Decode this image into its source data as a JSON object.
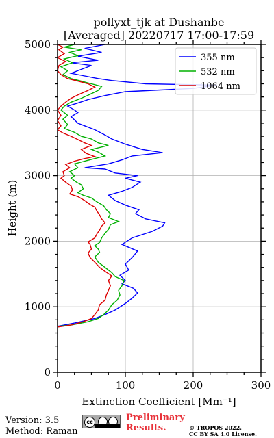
{
  "chart_data": {
    "type": "line",
    "title": "pollyxt_tjk at Dushanbe",
    "subtitle": "[Averaged] 20220717 17:00-17:59",
    "xlabel": "Extinction Coefficient [Mm⁻¹]",
    "ylabel": "Height (m)",
    "xlim": [
      0,
      300
    ],
    "ylim": [
      0,
      5000
    ],
    "xticks": [
      0,
      100,
      200,
      300
    ],
    "yticks": [
      0,
      1000,
      2000,
      3000,
      4000,
      5000
    ],
    "grid": true,
    "legend_position": "top-right",
    "series": [
      {
        "name": "355 nm",
        "color": "#0000ff",
        "points": [
          [
            0,
            700
          ],
          [
            25,
            750
          ],
          [
            55,
            820
          ],
          [
            70,
            880
          ],
          [
            85,
            950
          ],
          [
            100,
            1050
          ],
          [
            110,
            1130
          ],
          [
            118,
            1210
          ],
          [
            112,
            1280
          ],
          [
            95,
            1350
          ],
          [
            100,
            1400
          ],
          [
            92,
            1480
          ],
          [
            105,
            1560
          ],
          [
            100,
            1650
          ],
          [
            110,
            1750
          ],
          [
            118,
            1850
          ],
          [
            95,
            1950
          ],
          [
            110,
            2050
          ],
          [
            140,
            2150
          ],
          [
            155,
            2230
          ],
          [
            158,
            2280
          ],
          [
            130,
            2340
          ],
          [
            115,
            2420
          ],
          [
            120,
            2480
          ],
          [
            100,
            2550
          ],
          [
            85,
            2620
          ],
          [
            75,
            2700
          ],
          [
            95,
            2760
          ],
          [
            110,
            2820
          ],
          [
            122,
            2900
          ],
          [
            100,
            2960
          ],
          [
            118,
            3000
          ],
          [
            85,
            3040
          ],
          [
            70,
            3100
          ],
          [
            40,
            3120
          ],
          [
            75,
            3180
          ],
          [
            95,
            3240
          ],
          [
            110,
            3300
          ],
          [
            155,
            3350
          ],
          [
            125,
            3400
          ],
          [
            100,
            3480
          ],
          [
            80,
            3560
          ],
          [
            70,
            3620
          ],
          [
            55,
            3700
          ],
          [
            40,
            3760
          ],
          [
            30,
            3800
          ],
          [
            20,
            3900
          ],
          [
            30,
            3960
          ],
          [
            25,
            4000
          ],
          [
            15,
            4060
          ],
          [
            28,
            4100
          ],
          [
            45,
            4160
          ],
          [
            70,
            4220
          ],
          [
            100,
            4280
          ],
          [
            200,
            4330
          ],
          [
            235,
            4380
          ],
          [
            130,
            4400
          ],
          [
            80,
            4450
          ],
          [
            60,
            4480
          ],
          [
            40,
            4520
          ],
          [
            20,
            4560
          ],
          [
            35,
            4620
          ],
          [
            50,
            4680
          ],
          [
            20,
            4720
          ],
          [
            60,
            4760
          ],
          [
            30,
            4820
          ],
          [
            65,
            4880
          ],
          [
            40,
            4940
          ],
          [
            70,
            5000
          ]
        ]
      },
      {
        "name": "532 nm",
        "color": "#00b000",
        "points": [
          [
            0,
            700
          ],
          [
            20,
            720
          ],
          [
            45,
            770
          ],
          [
            60,
            820
          ],
          [
            68,
            880
          ],
          [
            75,
            950
          ],
          [
            80,
            1030
          ],
          [
            88,
            1100
          ],
          [
            92,
            1180
          ],
          [
            90,
            1250
          ],
          [
            95,
            1320
          ],
          [
            98,
            1400
          ],
          [
            85,
            1460
          ],
          [
            80,
            1520
          ],
          [
            70,
            1600
          ],
          [
            60,
            1680
          ],
          [
            55,
            1760
          ],
          [
            62,
            1830
          ],
          [
            60,
            1880
          ],
          [
            55,
            1930
          ],
          [
            62,
            1980
          ],
          [
            65,
            2050
          ],
          [
            70,
            2120
          ],
          [
            75,
            2180
          ],
          [
            78,
            2250
          ],
          [
            90,
            2300
          ],
          [
            75,
            2360
          ],
          [
            78,
            2420
          ],
          [
            72,
            2480
          ],
          [
            68,
            2540
          ],
          [
            58,
            2600
          ],
          [
            50,
            2660
          ],
          [
            38,
            2700
          ],
          [
            30,
            2740
          ],
          [
            38,
            2800
          ],
          [
            35,
            2860
          ],
          [
            28,
            2900
          ],
          [
            20,
            2960
          ],
          [
            25,
            3000
          ],
          [
            18,
            3060
          ],
          [
            30,
            3120
          ],
          [
            25,
            3180
          ],
          [
            40,
            3220
          ],
          [
            55,
            3260
          ],
          [
            70,
            3300
          ],
          [
            60,
            3360
          ],
          [
            50,
            3400
          ],
          [
            75,
            3460
          ],
          [
            60,
            3500
          ],
          [
            50,
            3560
          ],
          [
            35,
            3600
          ],
          [
            25,
            3660
          ],
          [
            10,
            3720
          ],
          [
            15,
            3780
          ],
          [
            8,
            3860
          ],
          [
            15,
            3920
          ],
          [
            5,
            4000
          ],
          [
            10,
            4060
          ],
          [
            20,
            4120
          ],
          [
            35,
            4180
          ],
          [
            48,
            4240
          ],
          [
            60,
            4300
          ],
          [
            65,
            4360
          ],
          [
            50,
            4400
          ],
          [
            35,
            4440
          ],
          [
            20,
            4480
          ],
          [
            8,
            4540
          ],
          [
            15,
            4600
          ],
          [
            5,
            4660
          ],
          [
            22,
            4720
          ],
          [
            10,
            4780
          ],
          [
            30,
            4830
          ],
          [
            18,
            4880
          ],
          [
            35,
            4920
          ],
          [
            10,
            4960
          ],
          [
            25,
            5000
          ]
        ]
      },
      {
        "name": "1064 nm",
        "color": "#dd0000",
        "points": [
          [
            0,
            690
          ],
          [
            20,
            720
          ],
          [
            38,
            770
          ],
          [
            50,
            820
          ],
          [
            55,
            880
          ],
          [
            60,
            950
          ],
          [
            62,
            1030
          ],
          [
            70,
            1100
          ],
          [
            72,
            1180
          ],
          [
            75,
            1250
          ],
          [
            78,
            1320
          ],
          [
            75,
            1400
          ],
          [
            80,
            1470
          ],
          [
            70,
            1540
          ],
          [
            62,
            1600
          ],
          [
            55,
            1680
          ],
          [
            48,
            1750
          ],
          [
            45,
            1820
          ],
          [
            50,
            1880
          ],
          [
            48,
            1950
          ],
          [
            45,
            1990
          ],
          [
            55,
            2050
          ],
          [
            58,
            2110
          ],
          [
            62,
            2170
          ],
          [
            65,
            2230
          ],
          [
            70,
            2280
          ],
          [
            65,
            2340
          ],
          [
            62,
            2400
          ],
          [
            58,
            2460
          ],
          [
            55,
            2520
          ],
          [
            48,
            2560
          ],
          [
            40,
            2620
          ],
          [
            30,
            2680
          ],
          [
            18,
            2720
          ],
          [
            22,
            2780
          ],
          [
            20,
            2840
          ],
          [
            12,
            2900
          ],
          [
            5,
            2960
          ],
          [
            10,
            3000
          ],
          [
            8,
            3060
          ],
          [
            18,
            3120
          ],
          [
            12,
            3170
          ],
          [
            25,
            3220
          ],
          [
            40,
            3260
          ],
          [
            55,
            3290
          ],
          [
            42,
            3340
          ],
          [
            35,
            3400
          ],
          [
            50,
            3460
          ],
          [
            40,
            3500
          ],
          [
            30,
            3550
          ],
          [
            20,
            3600
          ],
          [
            8,
            3650
          ],
          [
            0,
            3700
          ],
          [
            5,
            3760
          ],
          [
            0,
            3840
          ],
          [
            5,
            3920
          ],
          [
            0,
            4000
          ],
          [
            5,
            4060
          ],
          [
            12,
            4120
          ],
          [
            20,
            4180
          ],
          [
            32,
            4240
          ],
          [
            45,
            4300
          ],
          [
            55,
            4350
          ],
          [
            45,
            4400
          ],
          [
            30,
            4440
          ],
          [
            15,
            4480
          ],
          [
            5,
            4540
          ],
          [
            0,
            4600
          ],
          [
            2,
            4680
          ],
          [
            12,
            4740
          ],
          [
            0,
            4800
          ],
          [
            10,
            4860
          ],
          [
            2,
            4920
          ],
          [
            8,
            4960
          ],
          [
            0,
            5000
          ]
        ]
      }
    ]
  },
  "footer": {
    "version": "Version: 3.5",
    "method": "Method: Raman",
    "license_badge": "CC BY SA",
    "preliminary_line1": "Preliminary",
    "preliminary_line2": "Results.",
    "copyright_line1": "© TROPOS 2022.",
    "copyright_line2": "CC BY SA 4.0 License."
  }
}
